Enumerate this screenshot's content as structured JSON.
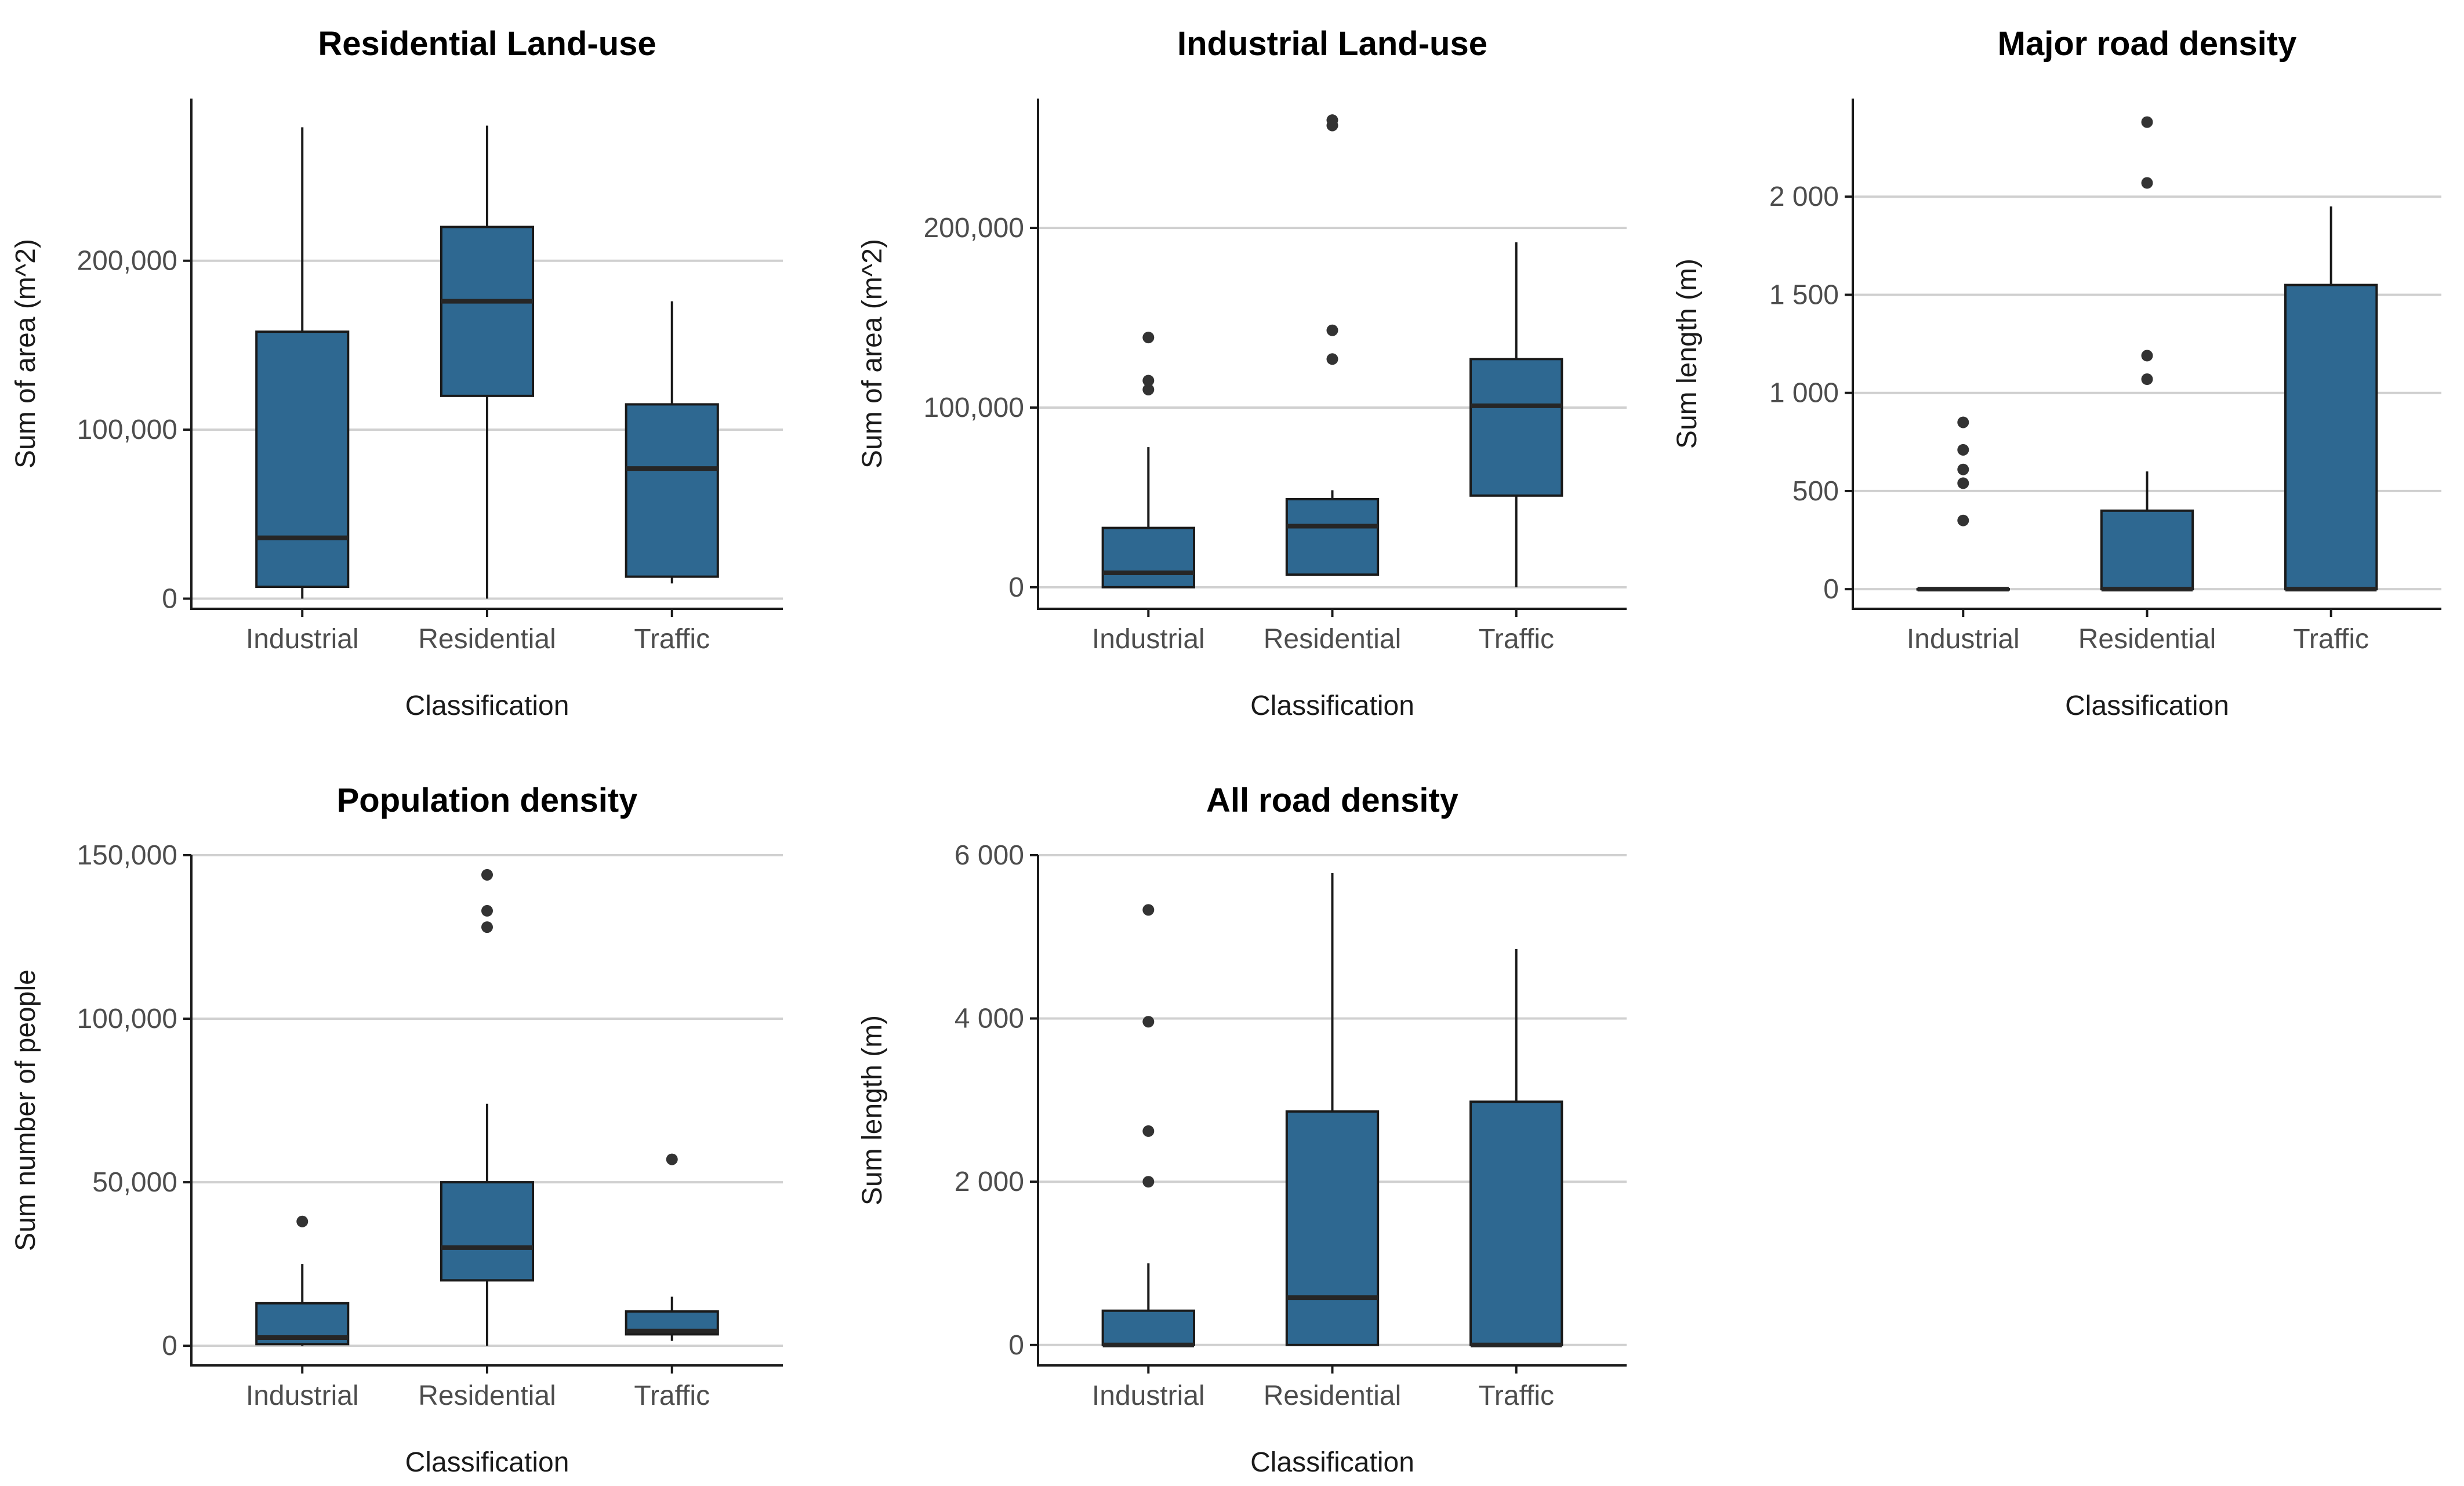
{
  "chart_data": [
    {
      "type": "box",
      "title": "Residential Land-use",
      "xlabel": "Classification",
      "ylabel": "Sum of area (m^2)",
      "categories": [
        "Industrial",
        "Residential",
        "Traffic"
      ],
      "ylim": [
        -6000,
        296000
      ],
      "yticks": [
        0,
        100000,
        200000
      ],
      "ytick_labels": [
        "0",
        "100,000",
        "200,000"
      ],
      "boxes": [
        {
          "min": 0,
          "q1": 7000,
          "median": 36000,
          "q3": 158000,
          "max": 279000,
          "outliers": []
        },
        {
          "min": 0,
          "q1": 120000,
          "median": 176000,
          "q3": 220000,
          "max": 280000,
          "outliers": []
        },
        {
          "min": 9000,
          "q1": 13000,
          "median": 77000,
          "q3": 115000,
          "max": 176000,
          "outliers": []
        }
      ]
    },
    {
      "type": "box",
      "title": "Industrial Land-use",
      "xlabel": "Classification",
      "ylabel": "Sum of area (m^2)",
      "categories": [
        "Industrial",
        "Residential",
        "Traffic"
      ],
      "ylim": [
        -12000,
        272000
      ],
      "yticks": [
        0,
        100000,
        200000
      ],
      "ytick_labels": [
        "0",
        "100,000",
        "200,000"
      ],
      "boxes": [
        {
          "min": 0,
          "q1": 0,
          "median": 8000,
          "q3": 33000,
          "max": 78000,
          "outliers": [
            110000,
            115000,
            139000
          ]
        },
        {
          "min": 7000,
          "q1": 7000,
          "median": 34000,
          "q3": 49000,
          "max": 54000,
          "outliers": [
            127000,
            143000,
            257000,
            260000
          ]
        },
        {
          "min": 0,
          "q1": 51000,
          "median": 101000,
          "q3": 127000,
          "max": 192000,
          "outliers": []
        }
      ]
    },
    {
      "type": "box",
      "title": "Major road density",
      "xlabel": "Classification",
      "ylabel": "Sum length (m)",
      "categories": [
        "Industrial",
        "Residential",
        "Traffic"
      ],
      "ylim": [
        -100,
        2500
      ],
      "yticks": [
        0,
        500,
        1000,
        1500,
        2000
      ],
      "ytick_labels": [
        "0",
        "500",
        "1 000",
        "1 500",
        "2 000"
      ],
      "boxes": [
        {
          "min": 0,
          "q1": 0,
          "median": 0,
          "q3": 0,
          "max": 0,
          "outliers": [
            350,
            540,
            610,
            710,
            850
          ]
        },
        {
          "min": 0,
          "q1": 0,
          "median": 0,
          "q3": 400,
          "max": 600,
          "outliers": [
            1070,
            1190,
            2070,
            2380
          ]
        },
        {
          "min": 0,
          "q1": 0,
          "median": 0,
          "q3": 1550,
          "max": 1950,
          "outliers": []
        }
      ]
    },
    {
      "type": "box",
      "title": "Population density",
      "xlabel": "Classification",
      "ylabel": "Sum number of people",
      "categories": [
        "Industrial",
        "Residential",
        "Traffic"
      ],
      "ylim": [
        -6000,
        150000
      ],
      "yticks": [
        0,
        50000,
        100000,
        150000
      ],
      "ytick_labels": [
        "0",
        "50,000",
        "100,000",
        "150,000"
      ],
      "boxes": [
        {
          "min": 0,
          "q1": 500,
          "median": 2500,
          "q3": 13000,
          "max": 25000,
          "outliers": [
            38000
          ]
        },
        {
          "min": 0,
          "q1": 20000,
          "median": 30000,
          "q3": 50000,
          "max": 74000,
          "outliers": [
            128000,
            133000,
            144000
          ]
        },
        {
          "min": 1500,
          "q1": 3500,
          "median": 4500,
          "q3": 10500,
          "max": 15000,
          "outliers": [
            57000
          ]
        }
      ]
    },
    {
      "type": "box",
      "title": "All road density",
      "xlabel": "Classification",
      "ylabel": "Sum length (m)",
      "categories": [
        "Industrial",
        "Residential",
        "Traffic"
      ],
      "ylim": [
        -250,
        6000
      ],
      "yticks": [
        0,
        2000,
        4000,
        6000
      ],
      "ytick_labels": [
        "0",
        "2 000",
        "4 000",
        "6 000"
      ],
      "boxes": [
        {
          "min": 0,
          "q1": 0,
          "median": 0,
          "q3": 420,
          "max": 1000,
          "outliers": [
            2000,
            2620,
            3960,
            5330
          ]
        },
        {
          "min": 0,
          "q1": 0,
          "median": 580,
          "q3": 2860,
          "max": 5780,
          "outliers": []
        },
        {
          "min": 0,
          "q1": 0,
          "median": 0,
          "q3": 2980,
          "max": 4850,
          "outliers": []
        }
      ]
    }
  ]
}
